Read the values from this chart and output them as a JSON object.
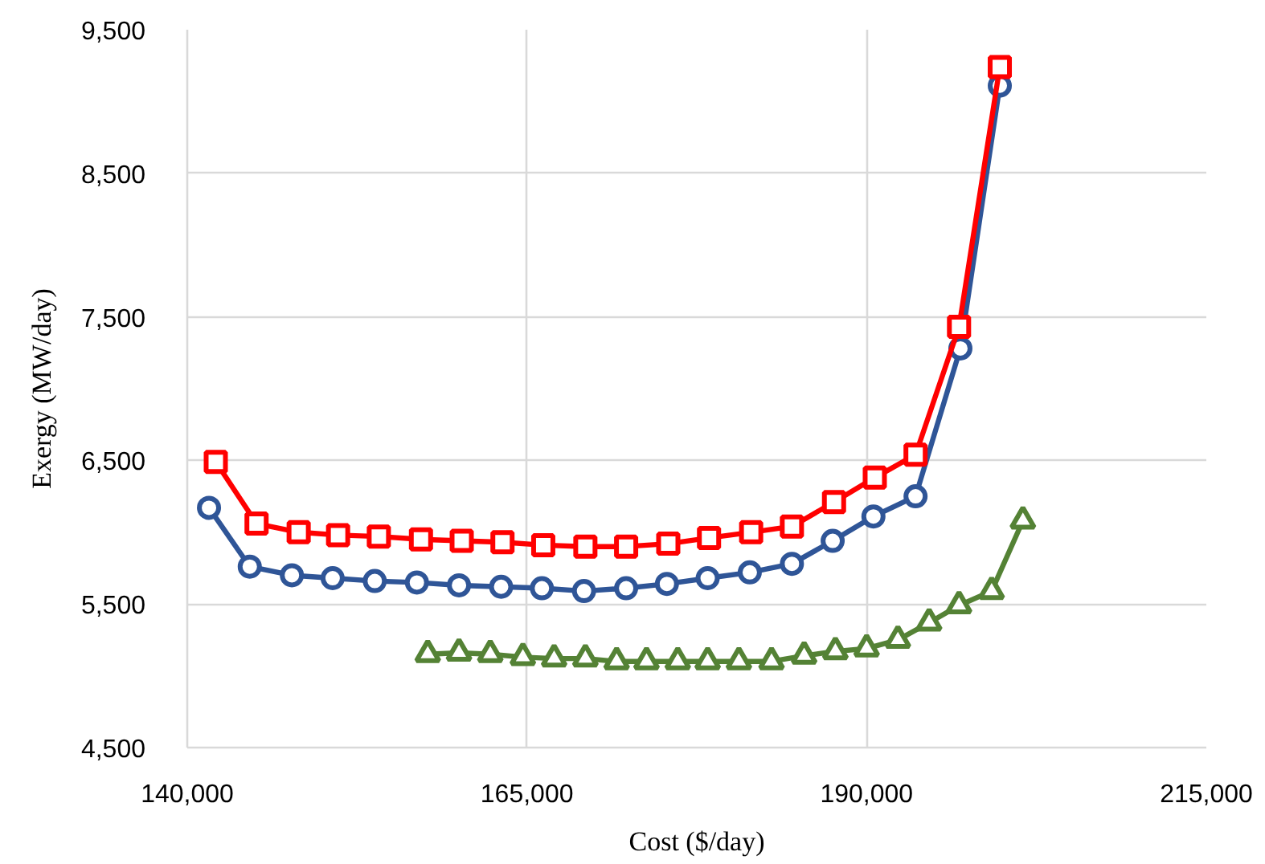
{
  "chart_data": {
    "type": "line",
    "xlabel": "Cost ($/day)",
    "ylabel": "Exergy (MW/day)",
    "xlim": [
      140000,
      215000
    ],
    "xticks": [
      {
        "value": 140000,
        "label": "140,000"
      },
      {
        "value": 165000,
        "label": "165,000"
      },
      {
        "value": 190000,
        "label": "190,000"
      },
      {
        "value": 215000,
        "label": "215,000"
      }
    ],
    "ylim": [
      4500,
      9500
    ],
    "yticks": [
      {
        "value": 4500,
        "label": "4,500"
      },
      {
        "value": 5500,
        "label": "5,500"
      },
      {
        "value": 6500,
        "label": "6,500"
      },
      {
        "value": 7500,
        "label": "7,500"
      },
      {
        "value": 8500,
        "label": "8,500"
      },
      {
        "value": 9500,
        "label": "9,500"
      }
    ],
    "grid": true,
    "line_style": "solid",
    "series": [
      {
        "color": "#2f5597",
        "marker": "circle",
        "x": [
          141600,
          144600,
          147700,
          150700,
          153800,
          156900,
          160000,
          163100,
          166100,
          169200,
          172300,
          175300,
          178300,
          181400,
          184500,
          187500,
          190500,
          193600,
          196900,
          199800
        ],
        "values": [
          6170,
          5760,
          5700,
          5680,
          5660,
          5650,
          5630,
          5620,
          5610,
          5590,
          5610,
          5640,
          5680,
          5720,
          5780,
          5940,
          6110,
          6250,
          7280,
          9110
        ]
      },
      {
        "color": "#ff0000",
        "marker": "square",
        "x": [
          142100,
          145100,
          148200,
          151100,
          154100,
          157200,
          160200,
          163200,
          166200,
          169300,
          172300,
          175400,
          178400,
          181500,
          184500,
          187600,
          190600,
          193600,
          196800,
          199800
        ],
        "values": [
          6490,
          6060,
          6000,
          5980,
          5970,
          5950,
          5940,
          5930,
          5910,
          5900,
          5900,
          5920,
          5960,
          6000,
          6040,
          6210,
          6380,
          6540,
          7430,
          9240
        ]
      },
      {
        "color": "#548235",
        "marker": "triangle",
        "x": [
          157700,
          160000,
          162300,
          164700,
          167000,
          169300,
          171600,
          173800,
          176100,
          178300,
          180600,
          183000,
          185400,
          187700,
          190000,
          192300,
          194600,
          196800,
          199200,
          201500
        ],
        "values": [
          5150,
          5160,
          5150,
          5130,
          5120,
          5120,
          5100,
          5100,
          5100,
          5100,
          5100,
          5100,
          5140,
          5170,
          5190,
          5250,
          5370,
          5490,
          5590,
          6080
        ]
      }
    ]
  }
}
